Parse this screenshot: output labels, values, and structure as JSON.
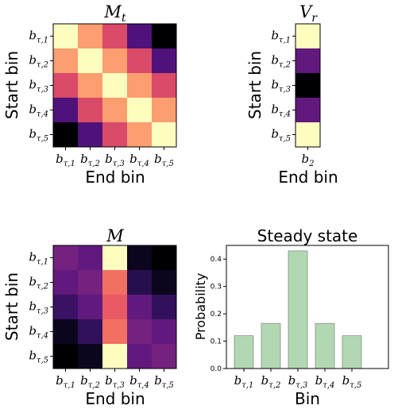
{
  "chart_data": [
    {
      "type": "heatmap",
      "id": "Mt",
      "title": "M",
      "title_sub": "t",
      "xlabel": "End bin",
      "ylabel": "Start bin",
      "colormap": "magma",
      "x_ticks": [
        "bτ,1",
        "bτ,2",
        "bτ,3",
        "bτ,4",
        "bτ,5"
      ],
      "y_ticks": [
        "bτ,1",
        "bτ,2",
        "bτ,3",
        "bτ,4",
        "bτ,5"
      ],
      "values": [
        [
          1.0,
          0.8,
          0.6,
          0.25,
          0.0
        ],
        [
          0.8,
          1.0,
          0.8,
          0.6,
          0.25
        ],
        [
          0.6,
          0.8,
          1.0,
          0.8,
          0.6
        ],
        [
          0.25,
          0.6,
          0.8,
          1.0,
          0.8
        ],
        [
          0.0,
          0.25,
          0.6,
          0.8,
          1.0
        ]
      ]
    },
    {
      "type": "heatmap",
      "id": "Vr",
      "title": "V",
      "title_sub": "r",
      "xlabel": "End bin",
      "ylabel": "Start bin",
      "colormap": "magma",
      "x_ticks": [
        "b2"
      ],
      "y_ticks": [
        "bτ,1",
        "bτ,2",
        "bτ,3",
        "bτ,4",
        "bτ,5"
      ],
      "values": [
        [
          1.0
        ],
        [
          0.3
        ],
        [
          0.0
        ],
        [
          0.3
        ],
        [
          1.0
        ]
      ]
    },
    {
      "type": "heatmap",
      "id": "M",
      "title": "M",
      "xlabel": "End bin",
      "ylabel": "Start bin",
      "colormap": "magma",
      "x_ticks": [
        "bτ,1",
        "bτ,2",
        "bτ,3",
        "bτ,4",
        "bτ,5"
      ],
      "y_ticks": [
        "bτ,1",
        "bτ,2",
        "bτ,3",
        "bτ,4",
        "bτ,5"
      ],
      "values": [
        [
          0.35,
          0.3,
          1.0,
          0.05,
          0.0
        ],
        [
          0.3,
          0.35,
          0.7,
          0.15,
          0.05
        ],
        [
          0.2,
          0.3,
          0.65,
          0.3,
          0.18
        ],
        [
          0.05,
          0.18,
          0.7,
          0.35,
          0.3
        ],
        [
          0.0,
          0.05,
          1.0,
          0.3,
          0.35
        ]
      ]
    },
    {
      "type": "bar",
      "id": "steady",
      "title": "Steady state",
      "xlabel": "Bin",
      "ylabel": "Probability",
      "categories": [
        "bτ,1",
        "bτ,2",
        "bτ,3",
        "bτ,4",
        "bτ,5"
      ],
      "values": [
        0.12,
        0.165,
        0.43,
        0.165,
        0.12
      ],
      "ylim": [
        0,
        0.45
      ],
      "yticks": [
        "0.0",
        "0.1",
        "0.2",
        "0.3",
        "0.4"
      ],
      "bar_color": "#b2d8b2",
      "grid": false
    }
  ]
}
